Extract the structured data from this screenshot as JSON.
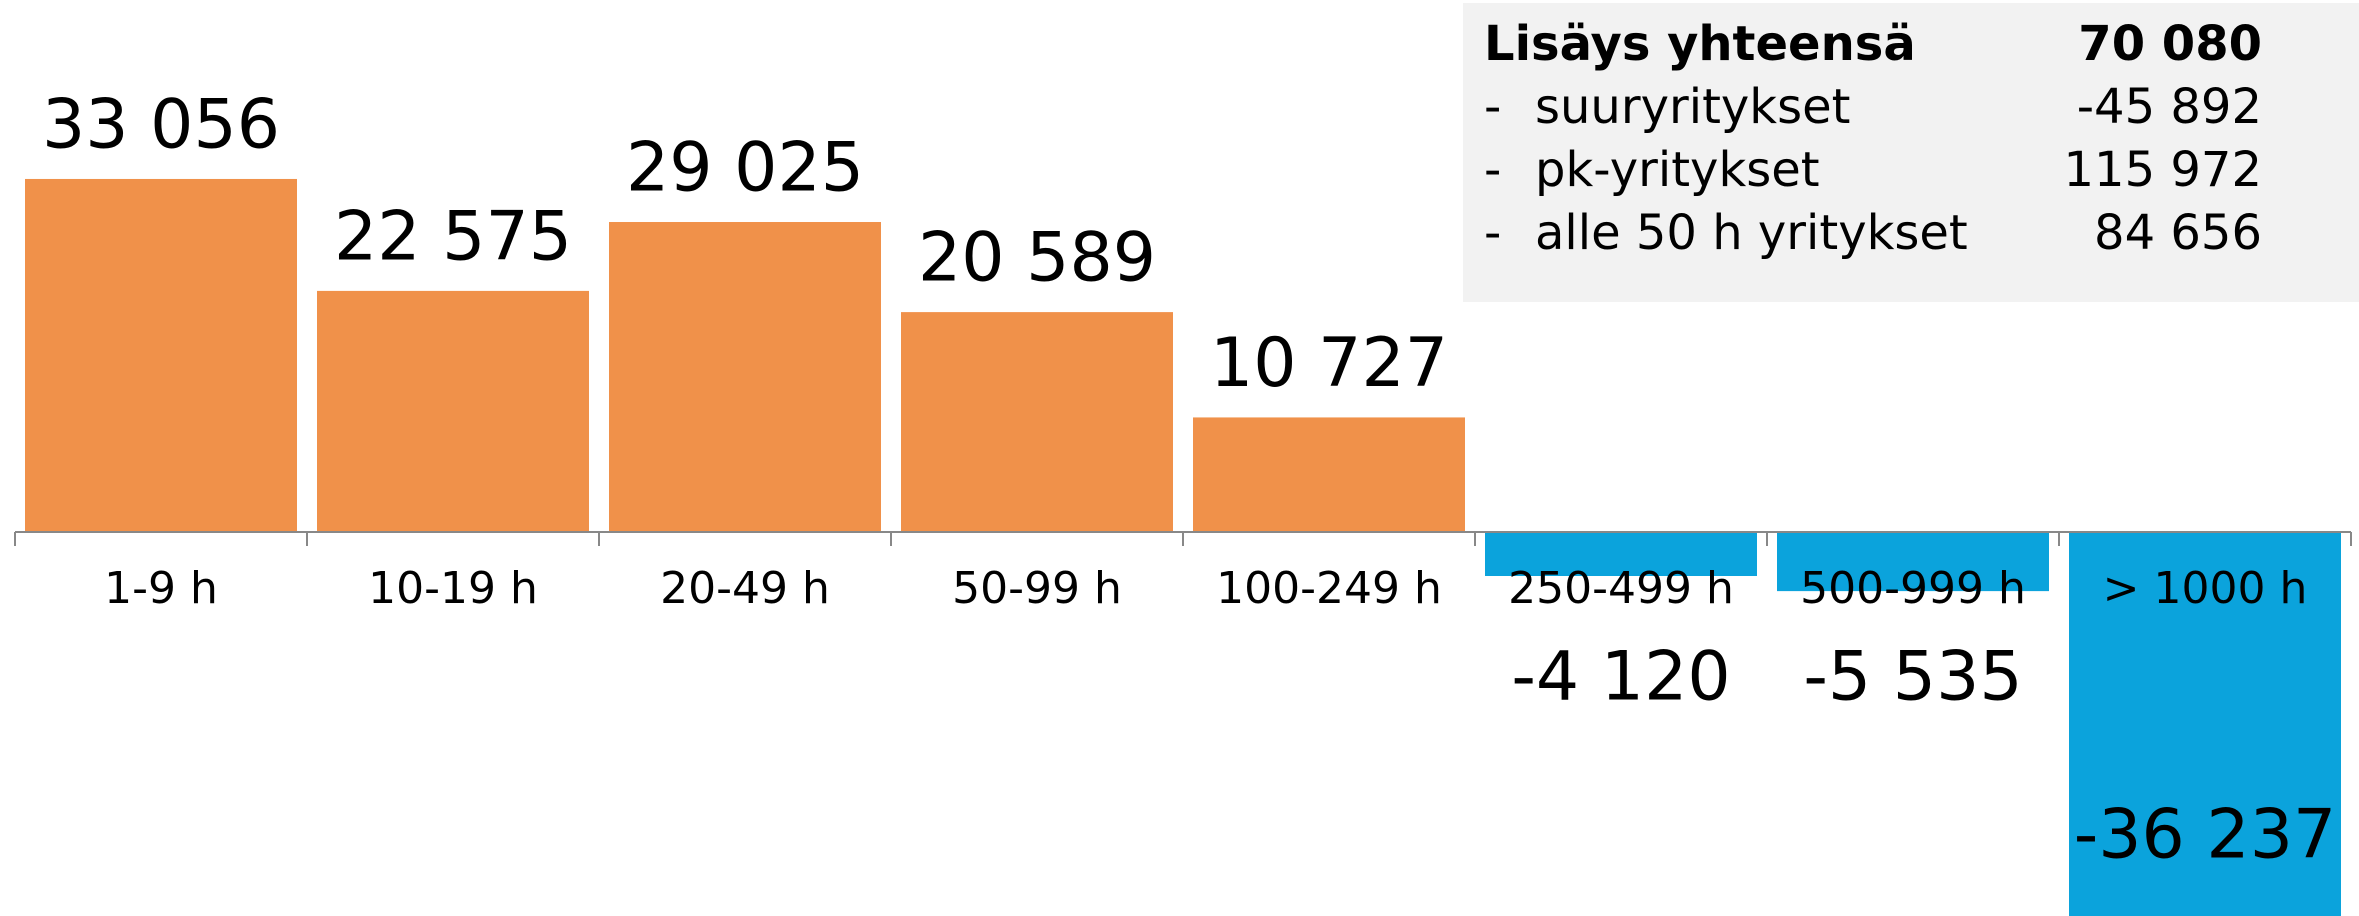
{
  "chart_data": {
    "type": "bar",
    "categories": [
      "1-9 h",
      "10-19 h",
      "20-49 h",
      "50-99 h",
      "100-249 h",
      "250-499 h",
      "500-999 h",
      "> 1000 h"
    ],
    "values": [
      33056,
      22575,
      29025,
      20589,
      10727,
      -4120,
      -5535,
      -36237
    ],
    "value_labels": [
      "33 056",
      "22 575",
      "29 025",
      "20 589",
      "10 727",
      "-4 120",
      "-5 535",
      "-36 237"
    ],
    "positive_color": "#f0914a",
    "negative_color": "#0ba3dc",
    "summary": [
      {
        "label": "Lisäys yhteensä",
        "value": "70 080"
      },
      {
        "bullet": "-",
        "label": "suuryritykset",
        "value": "-45 892"
      },
      {
        "bullet": "-",
        "label": "pk-yritykset",
        "value": "115 972"
      },
      {
        "bullet": "-",
        "label": "alle 50 h yritykset",
        "value": "84 656"
      }
    ]
  }
}
